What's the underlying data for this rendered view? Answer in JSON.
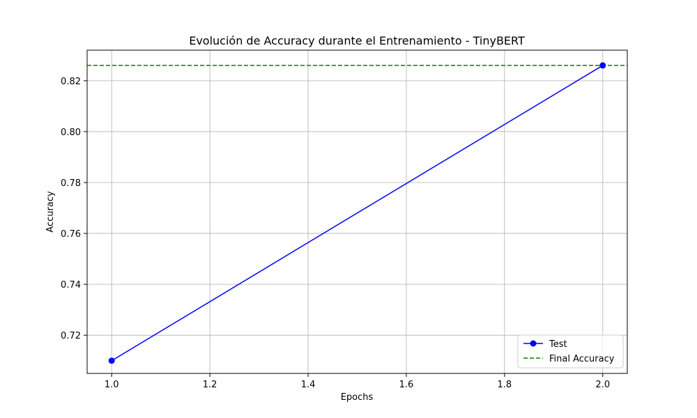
{
  "chart_data": {
    "type": "line",
    "title": "Evolución de Accuracy durante el Entrenamiento - TinyBERT",
    "xlabel": "Epochs",
    "ylabel": "Accuracy",
    "xlim": [
      0.95,
      2.05
    ],
    "ylim": [
      0.705,
      0.832
    ],
    "xticks": [
      1.0,
      1.2,
      1.4,
      1.6,
      1.8,
      2.0
    ],
    "xtick_labels": [
      "1.0",
      "1.2",
      "1.4",
      "1.6",
      "1.8",
      "2.0"
    ],
    "yticks": [
      0.72,
      0.74,
      0.76,
      0.78,
      0.8,
      0.82
    ],
    "ytick_labels": [
      "0.72",
      "0.74",
      "0.76",
      "0.78",
      "0.80",
      "0.82"
    ],
    "grid": true,
    "legend_position": "lower-right",
    "series": [
      {
        "name": "Test",
        "x": [
          1.0,
          2.0
        ],
        "y": [
          0.71,
          0.826
        ],
        "color": "#0000ff",
        "marker": "circle",
        "style": "solid"
      }
    ],
    "reference_lines": [
      {
        "name": "Final Accuracy",
        "y": 0.826,
        "color": "#008000",
        "style": "dashed"
      }
    ]
  }
}
